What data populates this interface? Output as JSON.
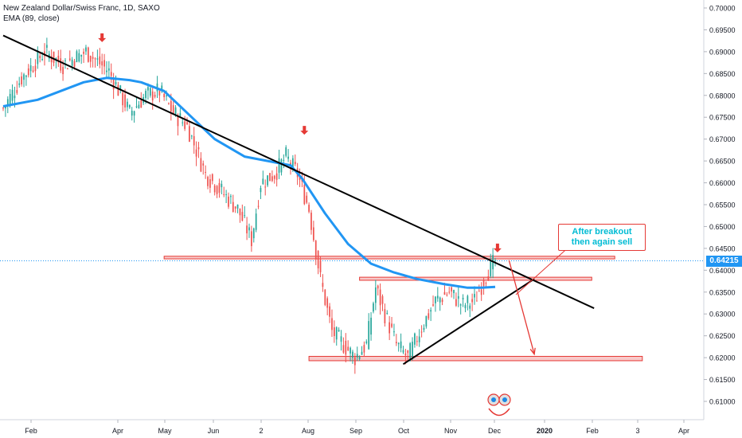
{
  "header": {
    "title": "New Zealand Dollar/Swiss Franc, 1D, SAXO",
    "indicator": "EMA (89, close)"
  },
  "current_price": "0.64215",
  "annotation": {
    "line1": "After breakout",
    "line2": "then again sell"
  },
  "colors": {
    "up": "#26a69a",
    "down": "#ef5350",
    "ema": "#2196f3",
    "trend": "#000000",
    "zone_fill": "#f8c9c9",
    "zone_stroke": "#e53935",
    "arrow": "#e53935",
    "price_label": "#2196f3"
  },
  "chart_data": {
    "type": "candlestick",
    "title": "New Zealand Dollar/Swiss Franc, 1D, SAXO",
    "ylim": [
      0.6075,
      0.702
    ],
    "y_ticks": [
      "0.70000",
      "0.69500",
      "0.69000",
      "0.68500",
      "0.68000",
      "0.67500",
      "0.67000",
      "0.66500",
      "0.66000",
      "0.65500",
      "0.65000",
      "0.64500",
      "0.64000",
      "0.63500",
      "0.63000",
      "0.62500",
      "0.62000",
      "0.61500",
      "0.61000"
    ],
    "x_ticks": [
      "Feb",
      "Apr",
      "May",
      "Jun",
      "2",
      "Aug",
      "Sep",
      "Oct",
      "Nov",
      "Dec",
      "2020",
      "Feb",
      "3",
      "Apr"
    ],
    "candle_count": 227,
    "price_path": [
      [
        0,
        0.677
      ],
      [
        8,
        0.684
      ],
      [
        18,
        0.69
      ],
      [
        26,
        0.687
      ],
      [
        36,
        0.69
      ],
      [
        46,
        0.6855
      ],
      [
        55,
        0.676
      ],
      [
        62,
        0.68
      ],
      [
        68,
        0.681
      ],
      [
        74,
        0.676
      ],
      [
        80,
        0.673
      ],
      [
        88,
        0.662
      ],
      [
        95,
        0.658
      ],
      [
        102,
        0.654
      ],
      [
        108,
        0.647
      ],
      [
        112,
        0.66
      ],
      [
        118,
        0.662
      ],
      [
        123,
        0.666
      ],
      [
        128,
        0.662
      ],
      [
        133,
        0.654
      ],
      [
        138,
        0.638
      ],
      [
        143,
        0.626
      ],
      [
        148,
        0.623
      ],
      [
        153,
        0.62
      ],
      [
        158,
        0.623
      ],
      [
        162,
        0.636
      ],
      [
        166,
        0.63
      ],
      [
        171,
        0.623
      ],
      [
        176,
        0.62
      ],
      [
        182,
        0.627
      ],
      [
        188,
        0.633
      ],
      [
        194,
        0.635
      ],
      [
        200,
        0.632
      ],
      [
        205,
        0.633
      ],
      [
        210,
        0.639
      ],
      [
        214,
        0.6421
      ]
    ],
    "ema_path": [
      [
        0,
        0.6775
      ],
      [
        15,
        0.679
      ],
      [
        25,
        0.681
      ],
      [
        35,
        0.683
      ],
      [
        45,
        0.684
      ],
      [
        55,
        0.6835
      ],
      [
        60,
        0.683
      ],
      [
        70,
        0.681
      ],
      [
        80,
        0.676
      ],
      [
        92,
        0.67
      ],
      [
        105,
        0.666
      ],
      [
        115,
        0.665
      ],
      [
        125,
        0.664
      ],
      [
        130,
        0.661
      ],
      [
        140,
        0.653
      ],
      [
        150,
        0.646
      ],
      [
        160,
        0.6415
      ],
      [
        170,
        0.6395
      ],
      [
        180,
        0.638
      ],
      [
        192,
        0.6368
      ],
      [
        202,
        0.636
      ],
      [
        208,
        0.636
      ],
      [
        214,
        0.6362
      ]
    ],
    "trendlines": [
      {
        "name": "descending resistance",
        "from": [
          0,
          0.6937
        ],
        "to": [
          257,
          0.6313
        ]
      },
      {
        "name": "ascending support",
        "from": [
          174,
          0.6185
        ],
        "to": [
          231,
          0.638
        ]
      }
    ],
    "zones": [
      {
        "from": [
          70,
          0.6426
        ],
        "to": [
          266,
          0.6432
        ]
      },
      {
        "from": [
          155,
          0.6377
        ],
        "to": [
          256,
          0.6384
        ]
      },
      {
        "from": [
          133,
          0.6193
        ],
        "to": [
          278,
          0.6203
        ]
      }
    ],
    "markers": [
      {
        "type": "down-arrow",
        "at": [
          43,
          0.6922
        ]
      },
      {
        "type": "down-arrow",
        "at": [
          131,
          0.671
        ]
      },
      {
        "type": "down-arrow",
        "at": [
          215,
          0.6441
        ]
      }
    ],
    "projection": {
      "from": [
        220,
        0.6423
      ],
      "to": [
        231,
        0.6208
      ]
    }
  }
}
